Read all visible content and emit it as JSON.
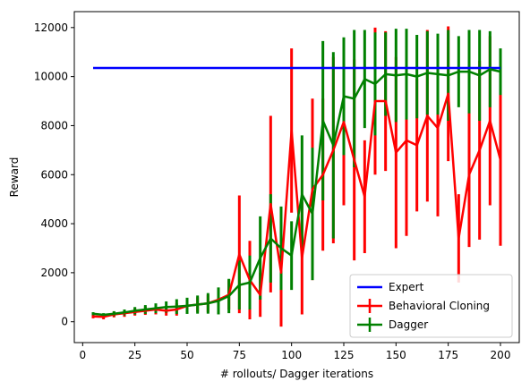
{
  "chart_data": {
    "type": "line",
    "title": "",
    "xlabel": "# rollouts/ Dagger iterations",
    "ylabel": "Reward",
    "xlim": [
      -4,
      209
    ],
    "ylim": [
      -850,
      12650
    ],
    "xticks": [
      0,
      25,
      50,
      75,
      100,
      125,
      150,
      175,
      200
    ],
    "yticks": [
      0,
      2000,
      4000,
      6000,
      8000,
      10000,
      12000
    ],
    "grid": false,
    "legend_position": "lower-right",
    "series": [
      {
        "name": "Expert",
        "kind": "hline",
        "color": "#0000ff",
        "x": [
          5,
          200
        ],
        "y": [
          10350,
          10350
        ]
      },
      {
        "name": "Behavioral Cloning",
        "kind": "errorbar",
        "color": "#ff0000",
        "x": [
          5,
          10,
          15,
          20,
          25,
          30,
          35,
          40,
          45,
          50,
          55,
          60,
          65,
          70,
          75,
          80,
          85,
          90,
          95,
          100,
          105,
          110,
          115,
          120,
          125,
          130,
          135,
          140,
          145,
          150,
          155,
          160,
          165,
          170,
          175,
          180,
          185,
          190,
          195,
          200
        ],
        "y": [
          220,
          200,
          300,
          350,
          400,
          450,
          500,
          450,
          500,
          650,
          700,
          750,
          900,
          1100,
          2750,
          1700,
          1100,
          4800,
          2000,
          7800,
          2600,
          5400,
          6000,
          7000,
          8150,
          6600,
          5100,
          9000,
          9000,
          6900,
          7400,
          7200,
          8400,
          7900,
          9300,
          3400,
          6000,
          7000,
          8200,
          6600
        ],
        "err": [
          80,
          100,
          120,
          150,
          150,
          170,
          200,
          200,
          250,
          300,
          300,
          350,
          400,
          600,
          2400,
          1600,
          900,
          3600,
          2200,
          3350,
          2300,
          3700,
          3100,
          3800,
          3400,
          4100,
          2300,
          3000,
          2850,
          3900,
          3900,
          2700,
          3500,
          3600,
          2750,
          1800,
          2950,
          3650,
          3450,
          3500
        ]
      },
      {
        "name": "Dagger",
        "kind": "errorbar",
        "color": "#008000",
        "x": [
          5,
          10,
          15,
          20,
          25,
          30,
          35,
          40,
          45,
          50,
          55,
          60,
          65,
          70,
          75,
          80,
          85,
          90,
          95,
          100,
          105,
          110,
          115,
          120,
          125,
          130,
          135,
          140,
          145,
          150,
          155,
          160,
          165,
          170,
          175,
          180,
          185,
          190,
          195,
          200
        ],
        "y": [
          330,
          280,
          330,
          380,
          450,
          500,
          550,
          600,
          620,
          650,
          700,
          750,
          850,
          1050,
          1500,
          1600,
          2600,
          3400,
          3000,
          2700,
          5200,
          4400,
          8200,
          7200,
          9200,
          9100,
          9900,
          9700,
          10100,
          10050,
          10100,
          10000,
          10150,
          10100,
          10050,
          10200,
          10200,
          10050,
          10300,
          10200
        ],
        "err": [
          60,
          70,
          100,
          120,
          150,
          180,
          200,
          230,
          300,
          330,
          370,
          420,
          550,
          700,
          1000,
          1100,
          1700,
          1800,
          1700,
          1400,
          2400,
          2700,
          3250,
          3800,
          2400,
          2800,
          2000,
          2100,
          1700,
          1900,
          1850,
          1700,
          1700,
          1650,
          1850,
          1450,
          1700,
          1850,
          1550,
          950
        ]
      }
    ]
  }
}
